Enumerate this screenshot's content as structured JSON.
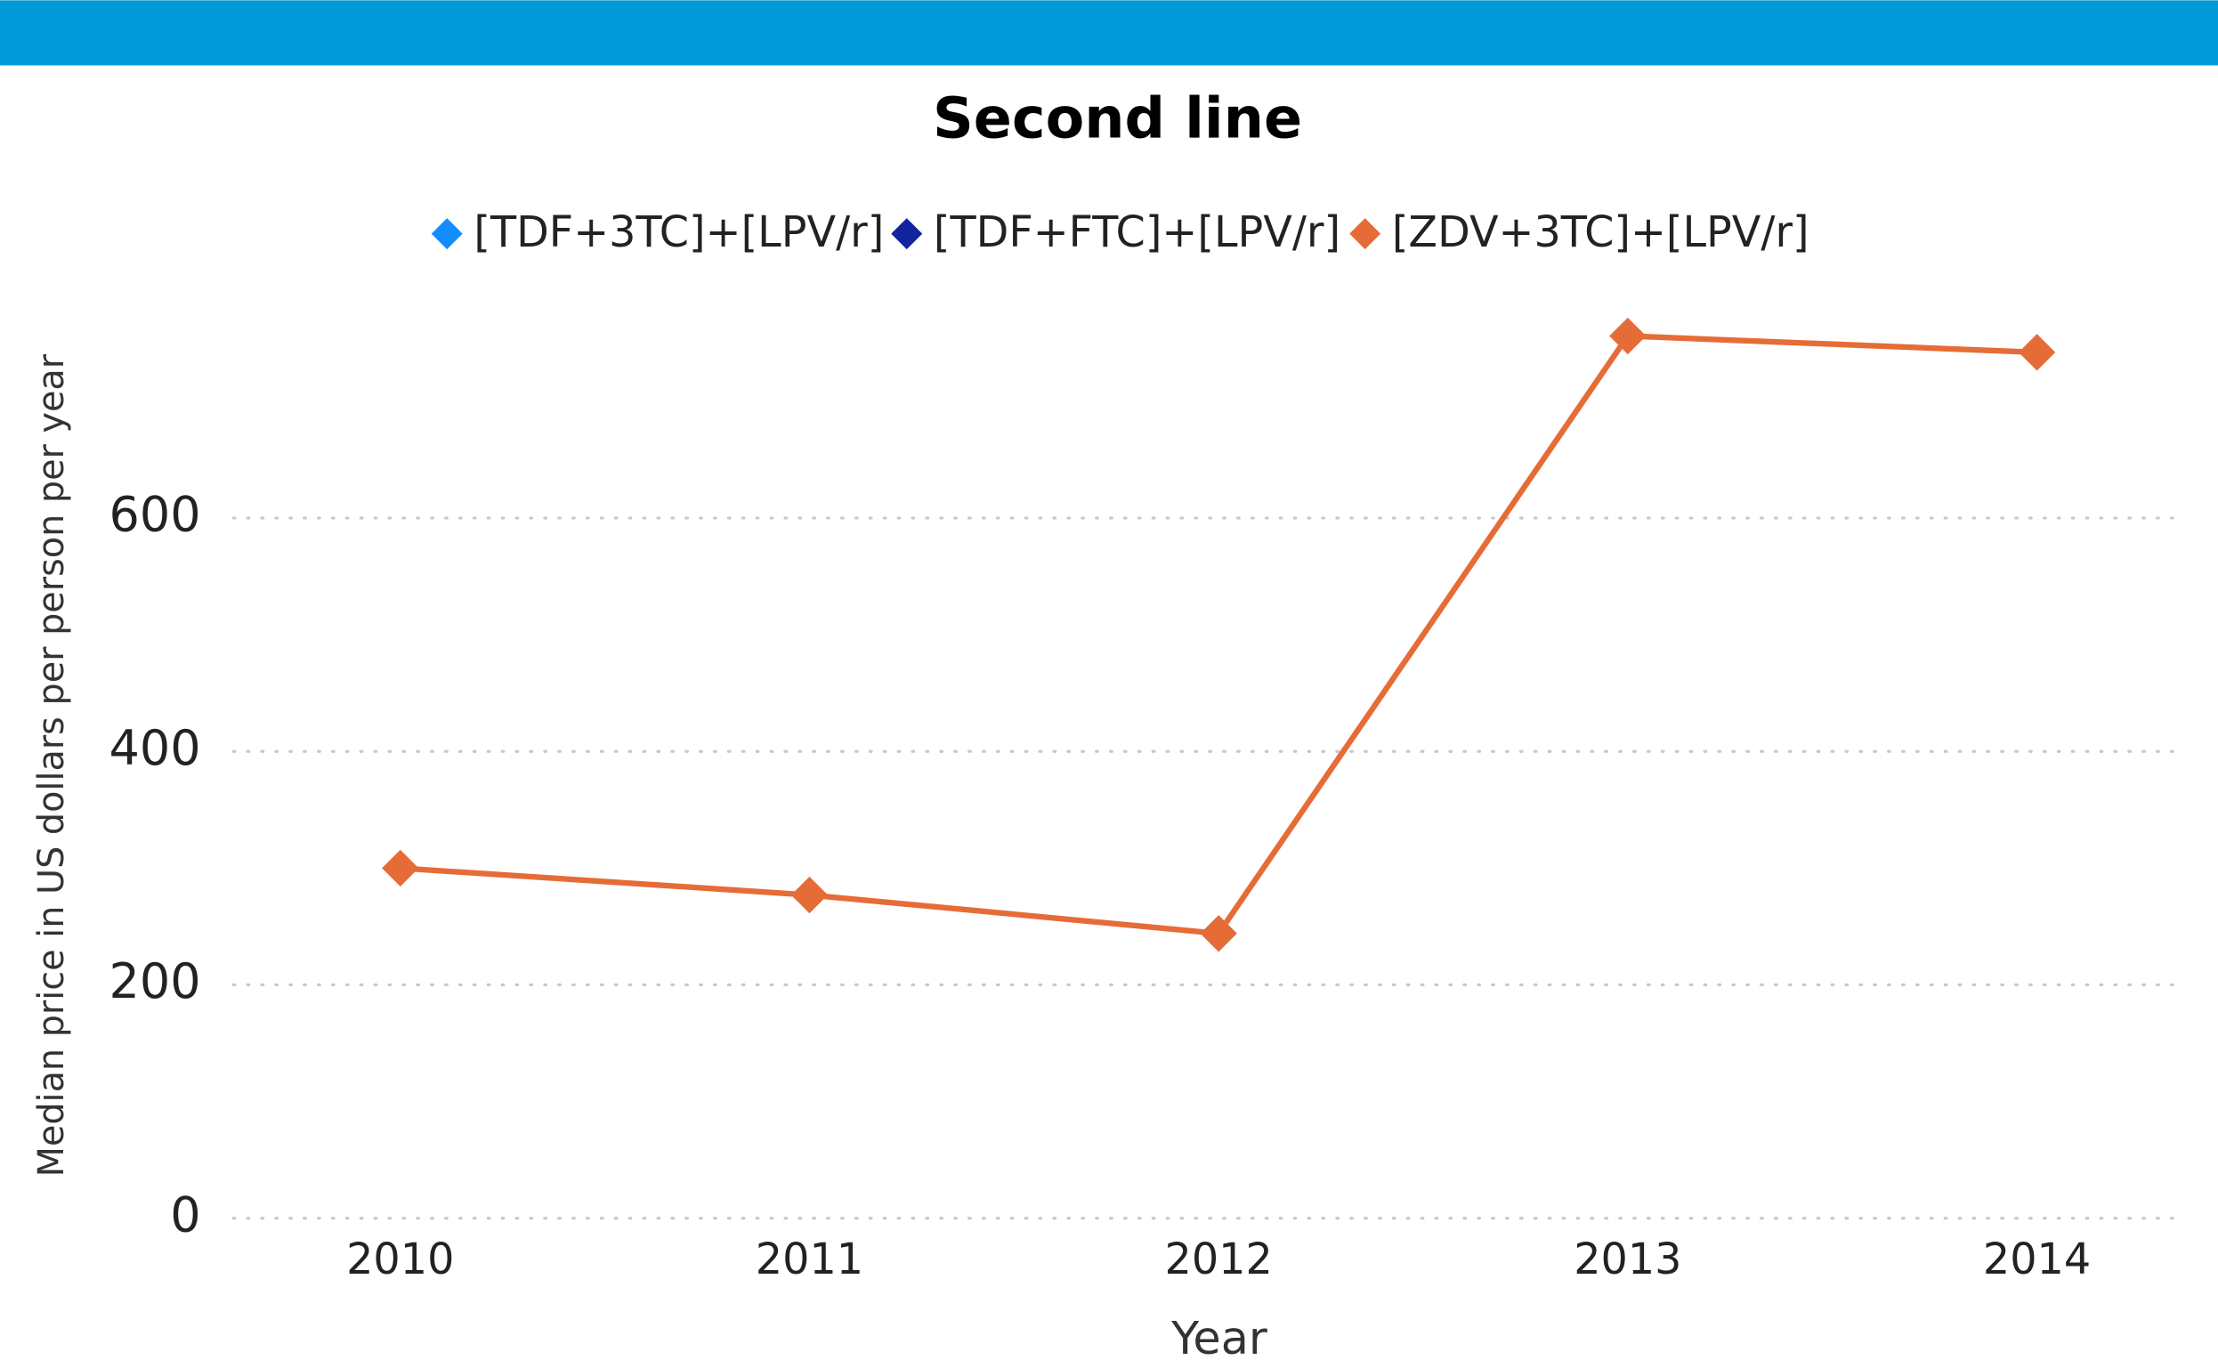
{
  "chart_data": {
    "type": "line",
    "title": "Second line",
    "x_label": "Year",
    "y_label": "Median price in US dollars per person per year",
    "categories": [
      "2010",
      "2011",
      "2012",
      "2013",
      "2014"
    ],
    "series": [
      {
        "name": "[TDF+3TC]+[LPV/r]",
        "color": "#118dff",
        "values": [
          null,
          null,
          null,
          null,
          null
        ]
      },
      {
        "name": "[TDF+FTC]+[LPV/r]",
        "color": "#12239e",
        "values": [
          null,
          null,
          null,
          null,
          null
        ]
      },
      {
        "name": "[ZDV+3TC]+[LPV/r]",
        "color": "#e66c37",
        "values": [
          300,
          277,
          244,
          756,
          742
        ]
      }
    ],
    "ylim": [
      0,
      800
    ],
    "yticks": [
      0,
      200,
      400,
      600
    ],
    "grid": true,
    "legend": "top"
  }
}
